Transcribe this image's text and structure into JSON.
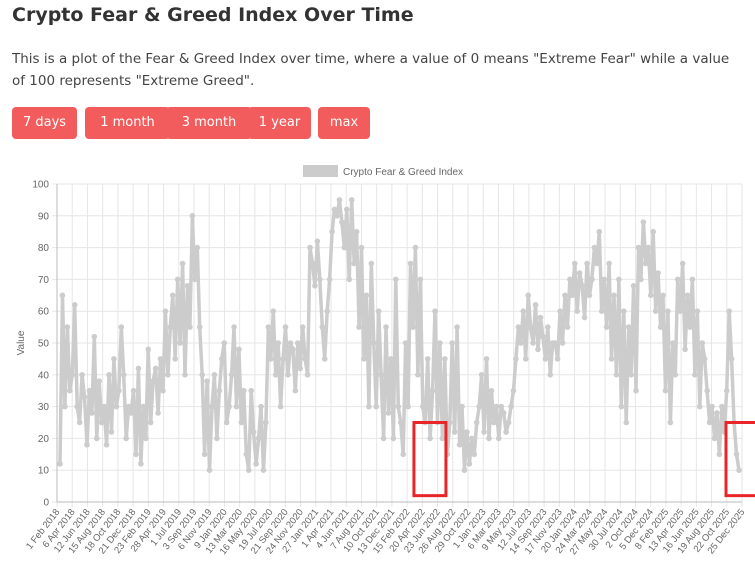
{
  "page": {
    "title": "Crypto Fear & Greed Index Over Time",
    "description": "This is a plot of the Fear & Greed Index over time, where a value of 0 means \"Extreme Fear\" while a value of 100 represents \"Extreme Greed\"."
  },
  "buttons": [
    "7 days",
    "1 month",
    "3 month",
    "1 year",
    "max"
  ],
  "chart_data": {
    "type": "line",
    "legend": "Crypto Fear & Greed Index",
    "legend_position": "top-center",
    "ylabel": "Value",
    "ylim": [
      0,
      100
    ],
    "yticks": [
      0,
      10,
      20,
      30,
      40,
      50,
      60,
      70,
      80,
      90,
      100
    ],
    "grid": true,
    "series_color": "#cccccc",
    "highlight_color": "#e8262a",
    "xticks": [
      "1 Feb 2018",
      "6 Apr 2018",
      "12 Jun 2018",
      "15 Aug 2018",
      "18 Oct 2018",
      "21 Dec 2018",
      "23 Feb 2019",
      "28 Apr 2019",
      "1 Jul 2019",
      "3 Sep 2019",
      "6 Nov 2019",
      "9 Jan 2020",
      "13 Mar 2020",
      "16 May 2020",
      "19 Jul 2020",
      "21 Sep 2020",
      "24 Nov 2020",
      "27 Jan 2021",
      "1 Apr 2021",
      "4 Jun 2021",
      "7 Aug 2021",
      "10 Oct 2021",
      "13 Dec 2021",
      "15 Feb 2022",
      "20 Apr 2022",
      "23 Jun 2022",
      "26 Aug 2022",
      "29 Oct 2022",
      "1 Jan 2023",
      "6 Mar 2023",
      "9 May 2023",
      "12 Jul 2023",
      "14 Sep 2023",
      "17 Nov 2023",
      "20 Jan 2024",
      "24 Mar 2024",
      "27 May 2024",
      "30 Jul 2024",
      "2 Oct 2024",
      "5 Dec 2024",
      "8 Feb 2025",
      "13 Apr 2025",
      "16 Jun 2025",
      "19 Aug 2025",
      "22 Oct 2025",
      "25 Dec 2025"
    ],
    "values": [
      12,
      65,
      30,
      55,
      35,
      40,
      62,
      30,
      25,
      40,
      33,
      18,
      35,
      28,
      52,
      20,
      38,
      25,
      30,
      18,
      40,
      22,
      45,
      30,
      35,
      55,
      40,
      20,
      30,
      28,
      35,
      15,
      42,
      12,
      30,
      20,
      48,
      25,
      38,
      42,
      28,
      45,
      35,
      60,
      40,
      55,
      65,
      45,
      70,
      50,
      75,
      40,
      68,
      55,
      90,
      70,
      80,
      55,
      40,
      15,
      38,
      10,
      30,
      40,
      20,
      35,
      45,
      50,
      25,
      30,
      40,
      55,
      30,
      48,
      25,
      35,
      15,
      10,
      35,
      22,
      12,
      20,
      30,
      10,
      25,
      55,
      45,
      60,
      40,
      50,
      30,
      45,
      55,
      40,
      50,
      48,
      35,
      50,
      42,
      55,
      45,
      40,
      80,
      75,
      68,
      82,
      70,
      55,
      45,
      60,
      70,
      85,
      92,
      90,
      95,
      88,
      80,
      92,
      70,
      95,
      75,
      85,
      55,
      80,
      45,
      65,
      30,
      75,
      50,
      30,
      60,
      40,
      20,
      55,
      28,
      45,
      20,
      70,
      30,
      25,
      15,
      50,
      30,
      75,
      55,
      80,
      40,
      70,
      30,
      25,
      45,
      20,
      35,
      60,
      25,
      50,
      20,
      45,
      15,
      25,
      50,
      22,
      55,
      18,
      30,
      10,
      22,
      12,
      20,
      15,
      25,
      30,
      40,
      22,
      45,
      20,
      35,
      25,
      30,
      20,
      30,
      28,
      22,
      25,
      30,
      35,
      45,
      55,
      50,
      60,
      45,
      65,
      55,
      50,
      62,
      48,
      58,
      52,
      45,
      55,
      40,
      50,
      50,
      45,
      60,
      50,
      65,
      55,
      70,
      65,
      75,
      60,
      72,
      68,
      58,
      75,
      65,
      70,
      80,
      75,
      85,
      60,
      70,
      55,
      75,
      45,
      65,
      40,
      70,
      30,
      60,
      25,
      55,
      40,
      68,
      35,
      80,
      70,
      88,
      75,
      80,
      65,
      85,
      60,
      72,
      55,
      65,
      35,
      60,
      25,
      50,
      40,
      70,
      60,
      75,
      48,
      65,
      55,
      70,
      40,
      60,
      30,
      50,
      45,
      35,
      25,
      30,
      20,
      28,
      15,
      30,
      22,
      35,
      60,
      45,
      25,
      15,
      10
    ],
    "highlights": [
      {
        "from": "20 Apr 2022",
        "to": "23 Jun 2022"
      },
      {
        "from": "25 Dec 2025",
        "to": "25 Dec 2025"
      }
    ]
  }
}
